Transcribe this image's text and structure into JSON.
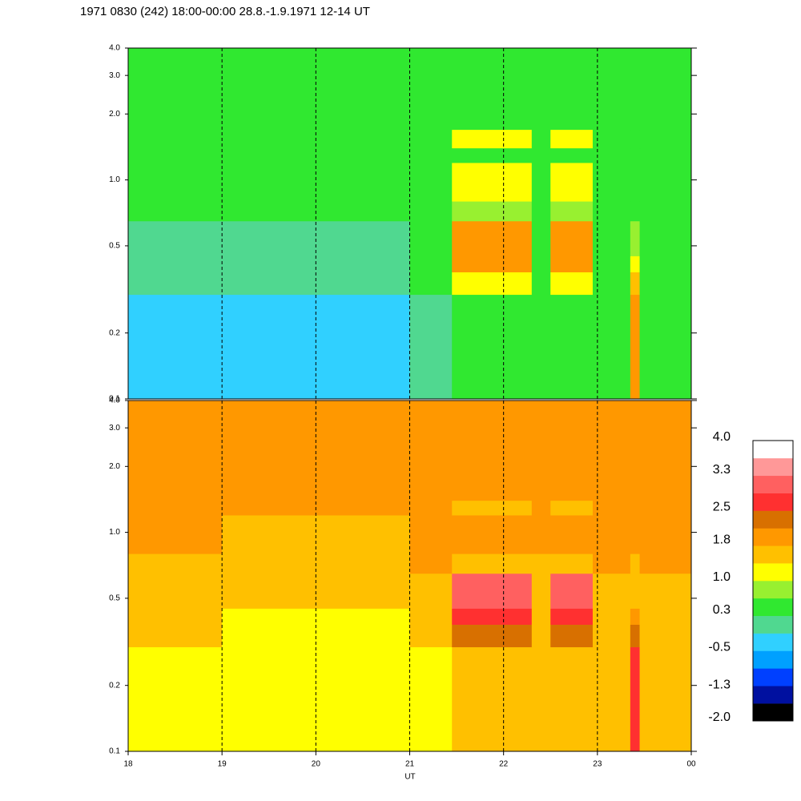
{
  "chart_data": [
    {
      "type": "heatmap",
      "title": "1971 0830 (242) 18:00-00:00 28.8.-1.9.1971  12-14 UT",
      "x_edges": [
        18,
        19,
        20,
        21,
        21.45,
        22.3,
        22.5,
        22.95,
        23.35,
        23.45,
        24
      ],
      "y_edges": [
        0.1,
        0.3,
        0.38,
        0.45,
        0.65,
        0.8,
        1.2,
        1.4,
        1.7,
        4.0
      ],
      "z": [
        [
          -0.3,
          -0.3,
          -0.3,
          0.1,
          0.4,
          0.3,
          0.4,
          0.4,
          1.9,
          0.4
        ],
        [
          0.0,
          0.0,
          0.0,
          0.3,
          1.2,
          0.4,
          1.2,
          0.5,
          1.5,
          0.5
        ],
        [
          0.0,
          0.1,
          0.1,
          0.3,
          1.9,
          0.4,
          1.9,
          0.5,
          1.2,
          0.5
        ],
        [
          0.1,
          0.1,
          0.2,
          0.4,
          2.0,
          0.5,
          2.0,
          0.5,
          0.8,
          0.5
        ],
        [
          0.3,
          0.3,
          0.3,
          0.5,
          0.8,
          0.5,
          0.8,
          0.5,
          0.5,
          0.5
        ],
        [
          0.4,
          0.4,
          0.4,
          0.5,
          1.1,
          0.5,
          1.1,
          0.5,
          0.5,
          0.5
        ],
        [
          0.4,
          0.4,
          0.4,
          0.5,
          0.4,
          0.5,
          0.4,
          0.5,
          0.5,
          0.5
        ],
        [
          0.4,
          0.4,
          0.4,
          0.5,
          1.2,
          0.5,
          1.2,
          0.5,
          0.5,
          0.5
        ],
        [
          0.3,
          0.3,
          0.3,
          0.3,
          0.3,
          0.3,
          0.3,
          0.3,
          0.3,
          0.3
        ]
      ],
      "xlim": [
        18,
        24
      ],
      "xticks": [
        18,
        19,
        20,
        21,
        22,
        23,
        {
          "value": 24,
          "label": "00"
        }
      ],
      "ylim": [
        0.1,
        4.0
      ],
      "log_y": true,
      "yticks": [
        0.1,
        0.2,
        0.5,
        {
          "value": 1,
          "label": "1.0"
        },
        {
          "value": 2,
          "label": "2.0"
        },
        {
          "value": 3,
          "label": "3.0"
        },
        {
          "value": 4,
          "label": "4.0"
        }
      ],
      "grid": true
    },
    {
      "type": "heatmap",
      "xlabel": "UT",
      "x_edges": [
        18,
        19,
        20,
        21,
        21.45,
        22.3,
        22.5,
        22.95,
        23.35,
        23.45,
        24
      ],
      "y_edges": [
        0.1,
        0.3,
        0.38,
        0.45,
        0.65,
        0.8,
        1.2,
        1.4,
        1.7,
        4.0
      ],
      "z": [
        [
          1.2,
          1.1,
          1.1,
          1.3,
          1.6,
          1.4,
          1.6,
          1.4,
          2.7,
          1.5
        ],
        [
          1.4,
          1.3,
          1.3,
          1.5,
          2.2,
          1.5,
          2.2,
          1.6,
          2.3,
          1.6
        ],
        [
          1.5,
          1.3,
          1.3,
          1.6,
          2.7,
          1.6,
          2.7,
          1.6,
          1.8,
          1.6
        ],
        [
          1.6,
          1.4,
          1.4,
          1.7,
          3.1,
          1.7,
          3.1,
          1.7,
          1.5,
          1.7
        ],
        [
          1.7,
          1.6,
          1.6,
          1.8,
          1.4,
          1.7,
          1.4,
          1.8,
          1.7,
          1.8
        ],
        [
          1.8,
          1.7,
          1.7,
          1.8,
          2.0,
          1.8,
          2.0,
          1.8,
          1.8,
          1.8
        ],
        [
          1.8,
          1.8,
          1.8,
          1.8,
          1.4,
          1.8,
          1.4,
          1.8,
          1.8,
          1.8
        ],
        [
          1.8,
          1.8,
          1.8,
          1.8,
          2.0,
          1.8,
          2.0,
          1.8,
          1.8,
          1.8
        ],
        [
          1.9,
          1.9,
          1.9,
          1.9,
          1.9,
          1.9,
          1.9,
          1.9,
          1.9,
          1.9
        ]
      ],
      "xlim": [
        18,
        24
      ],
      "xticks": [
        18,
        19,
        20,
        21,
        22,
        23,
        {
          "value": 24,
          "label": "00"
        }
      ],
      "ylim": [
        0.1,
        4.0
      ],
      "log_y": true,
      "yticks": [
        0.1,
        0.2,
        0.5,
        {
          "value": 1,
          "label": "1.0"
        },
        {
          "value": 2,
          "label": "2.0"
        },
        {
          "value": 3,
          "label": "3.0"
        },
        {
          "value": 4,
          "label": "4.0"
        }
      ],
      "grid": true
    }
  ],
  "colorbar": {
    "zlim": [
      -2,
      4
    ],
    "colors": [
      "#000000",
      "#0010a0",
      "#0040ff",
      "#00a0ff",
      "#30d0ff",
      "#50d890",
      "#30e830",
      "#98f030",
      "#ffff00",
      "#ffc000",
      "#ff9800",
      "#d87000",
      "#ff3030",
      "#ff6060",
      "#ff9898",
      "#ffffff"
    ],
    "ticks": [
      {
        "value": 4,
        "label": "4.0"
      },
      3.3,
      2.5,
      1.8,
      {
        "value": 1,
        "label": "1.0"
      },
      0.3,
      -0.5,
      -1.3,
      {
        "value": -2,
        "label": "-2.0"
      }
    ]
  }
}
